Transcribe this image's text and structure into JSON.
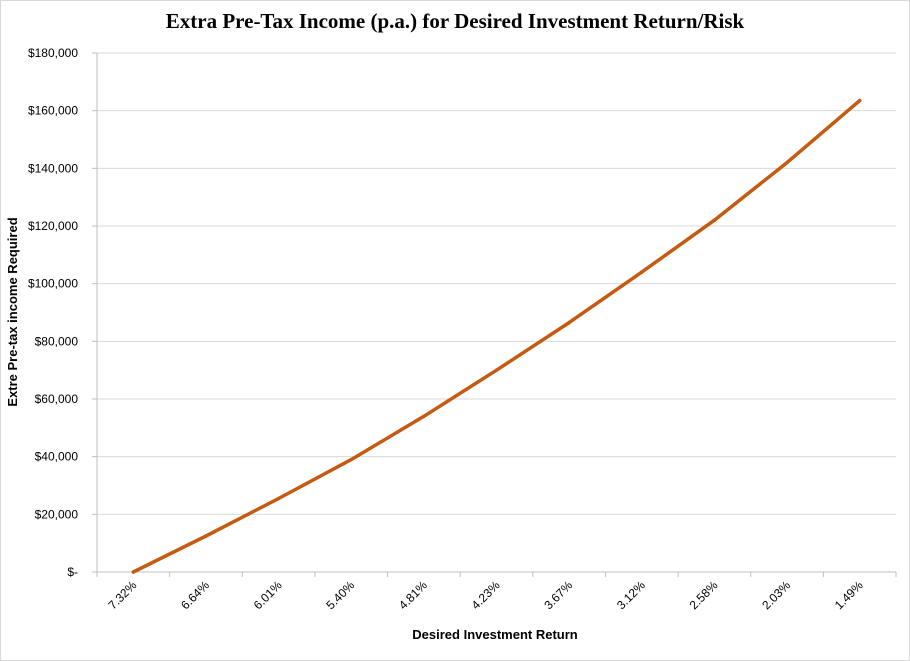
{
  "chart_data": {
    "type": "line",
    "title": "Extra Pre-Tax Income (p.a.) for Desired Investment Return/Risk",
    "xlabel": "Desired Investment Return",
    "ylabel": "Extre Pre-tax income Required",
    "categories": [
      "7.32%",
      "6.64%",
      "6.01%",
      "5.40%",
      "4.81%",
      "4.23%",
      "3.67%",
      "3.12%",
      "2.58%",
      "2.03%",
      "1.49%"
    ],
    "series": [
      {
        "values": [
          0,
          12500,
          25500,
          39000,
          54000,
          70000,
          86500,
          104000,
          122000,
          142000,
          163500
        ],
        "color": "#C55A11"
      }
    ],
    "ylim": [
      0,
      180000
    ],
    "yticks": [
      0,
      20000,
      40000,
      60000,
      80000,
      100000,
      120000,
      140000,
      160000,
      180000
    ],
    "ytick_labels": [
      "$-",
      "$20,000",
      "$40,000",
      "$60,000",
      "$80,000",
      "$100,000",
      "$120,000",
      "$140,000",
      "$160,000",
      "$180,000"
    ],
    "grid": true,
    "gridline_color": "#d9d9d9",
    "axis_color": "#bfbfbf",
    "legend": "none"
  }
}
